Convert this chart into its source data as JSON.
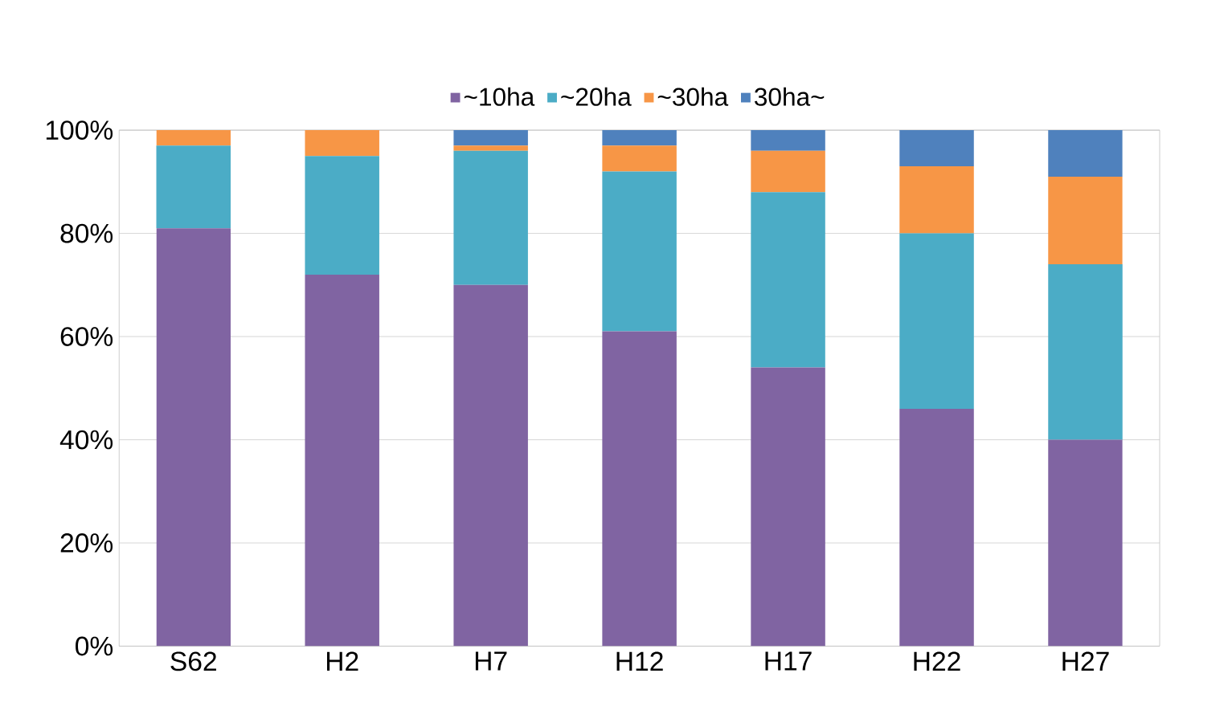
{
  "chart_data": {
    "type": "bar",
    "stacked": true,
    "categories": [
      "S62",
      "H2",
      "H7",
      "H12",
      "H17",
      "H22",
      "H27"
    ],
    "series": [
      {
        "name": "~10ha",
        "color": "#8064a2",
        "values": [
          81,
          72,
          70,
          61,
          54,
          46,
          40
        ]
      },
      {
        "name": "~20ha",
        "color": "#4bacc6",
        "values": [
          16,
          23,
          26,
          31,
          34,
          34,
          34
        ]
      },
      {
        "name": "~30ha",
        "color": "#f79646",
        "values": [
          3,
          5,
          1,
          5,
          8,
          13,
          17
        ]
      },
      {
        "name": "30ha~",
        "color": "#4f81bd",
        "values": [
          0,
          0,
          3,
          3,
          4,
          7,
          9
        ]
      }
    ],
    "ylim": [
      0,
      100
    ],
    "yticks": [
      {
        "value": 0,
        "label": "0%"
      },
      {
        "value": 20,
        "label": "20%"
      },
      {
        "value": 40,
        "label": "40%"
      },
      {
        "value": 60,
        "label": "60%"
      },
      {
        "value": 80,
        "label": "80%"
      },
      {
        "value": 100,
        "label": "100%"
      }
    ],
    "grid": "y",
    "legend": "top"
  }
}
